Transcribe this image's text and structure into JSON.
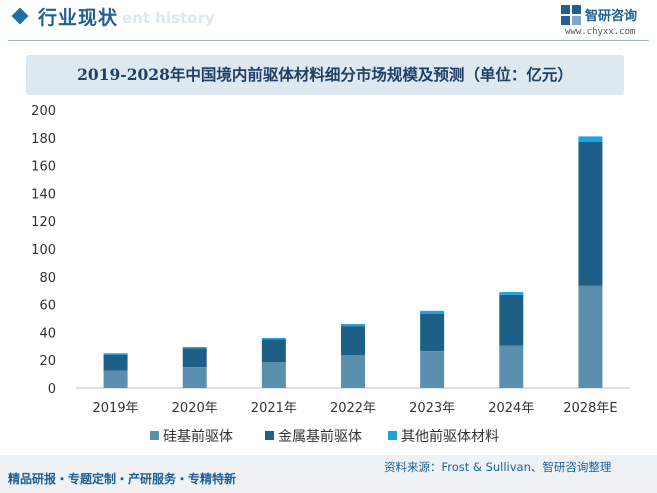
{
  "header": {
    "section_title": "行业现状",
    "section_subtitle": "ent history",
    "logo_text": "智研咨询",
    "logo_url": "www.chyxx.com"
  },
  "footer": {
    "left": "精品研报・专题定制・产研服务・专精特新",
    "source": "资料来源：Frost & Sullivan、智研咨询整理"
  },
  "colors": {
    "series1": "#5b8fae",
    "series2": "#1e5f87",
    "series3": "#1aa3dd",
    "accent": "#1f5f96"
  },
  "chart_data": {
    "type": "bar",
    "stacked": true,
    "title": "2019-2028年中国境内前驱体材料细分市场规模及预测（单位：亿元）",
    "categories": [
      "2019年",
      "2020年",
      "2021年",
      "2022年",
      "2023年",
      "2024年",
      "2028年E"
    ],
    "ylim": [
      0,
      200
    ],
    "yticks": [
      0,
      20,
      40,
      60,
      80,
      100,
      120,
      140,
      160,
      180,
      200
    ],
    "grid": false,
    "legend_position": "bottom",
    "series": [
      {
        "name": "硅基前驱体",
        "values": [
          12.5,
          15,
          18.5,
          23.5,
          26.5,
          30.5,
          73.5
        ]
      },
      {
        "name": "金属基前驱体",
        "values": [
          11.5,
          13.5,
          16.5,
          21.0,
          27.0,
          36.5,
          103.5
        ]
      },
      {
        "name": "其他前驱体材料",
        "values": [
          1.0,
          1.0,
          1.0,
          1.5,
          2.0,
          2.0,
          4.0
        ]
      }
    ]
  }
}
